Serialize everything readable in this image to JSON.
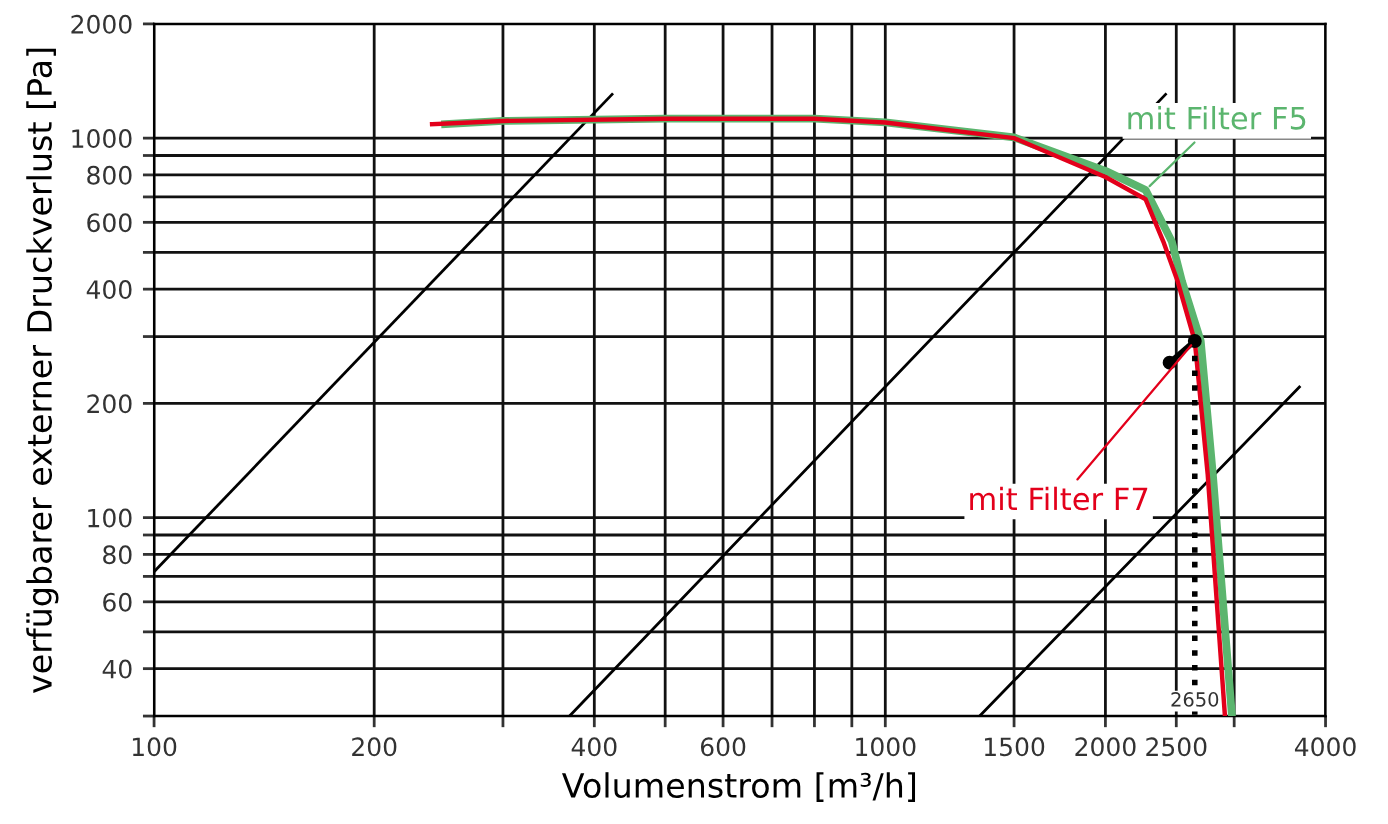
{
  "chart_data": {
    "type": "line",
    "xlabel": "Volumenstrom [m³/h]",
    "ylabel": "verfügbarer externer Druckverlust [Pa]",
    "log": "xy",
    "grid": true,
    "legend": false,
    "marker": "none",
    "line_style": "solid",
    "xlim": [
      100,
      4000
    ],
    "ylim": [
      30,
      2000
    ],
    "xticks": [
      100,
      200,
      {
        "value": 300,
        "label": null
      },
      400,
      {
        "value": 500,
        "label": null
      },
      600,
      {
        "value": 700,
        "label": null
      },
      {
        "value": 800,
        "label": null
      },
      {
        "value": 900,
        "label": null
      },
      1000,
      1500,
      2000,
      2500,
      {
        "value": 3000,
        "label": null
      },
      4000
    ],
    "yticks": [
      {
        "value": 30,
        "label": null
      },
      40,
      {
        "value": 50,
        "label": null
      },
      60,
      {
        "value": 70,
        "label": null
      },
      80,
      {
        "value": 90,
        "label": null
      },
      100,
      200,
      {
        "value": 300,
        "label": null
      },
      400,
      {
        "value": 500,
        "label": null
      },
      600,
      {
        "value": 700,
        "label": null
      },
      800,
      {
        "value": 900,
        "label": null
      },
      1000,
      2000
    ],
    "series": [
      {
        "color": "#000000",
        "x": [
          100,
          423
        ],
        "values": [
          72,
          1304
        ]
      },
      {
        "color": "#000000",
        "x": [
          370,
          2417
        ],
        "values": [
          30,
          1304
        ]
      },
      {
        "color": "#000000",
        "x": [
          1346,
          3684
        ],
        "values": [
          30,
          221
        ]
      },
      {
        "name": "mit Filter F5",
        "color": "#5bb56e",
        "x": [
          250,
          300,
          500,
          800,
          1000,
          1500,
          2000,
          2270,
          2465,
          2545,
          2700,
          2805,
          2979
        ],
        "values": [
          1088,
          1110,
          1125,
          1125,
          1100,
          1005,
          820,
          730,
          534,
          420,
          292,
          130,
          30
        ]
      },
      {
        "name": "mit Filter F7",
        "color": "#e3001b",
        "x": [
          240,
          300,
          500,
          800,
          1000,
          1500,
          2000,
          2270,
          2400,
          2510,
          2650,
          2760,
          2914
        ],
        "values": [
          1088,
          1110,
          1125,
          1125,
          1100,
          1000,
          790,
          690,
          534,
          420,
          292,
          130,
          30
        ]
      },
      {
        "color": "#000000",
        "x": [
          2448,
          2650
        ],
        "values": [
          256,
          292
        ],
        "marker": "circle"
      },
      {
        "color": "#000000",
        "x": [
          2650,
          2650
        ],
        "values": [
          292,
          30
        ],
        "line_style": "dotted"
      }
    ],
    "annotations": [
      {
        "text": "2650",
        "x": 2650,
        "y": 30
      }
    ]
  }
}
